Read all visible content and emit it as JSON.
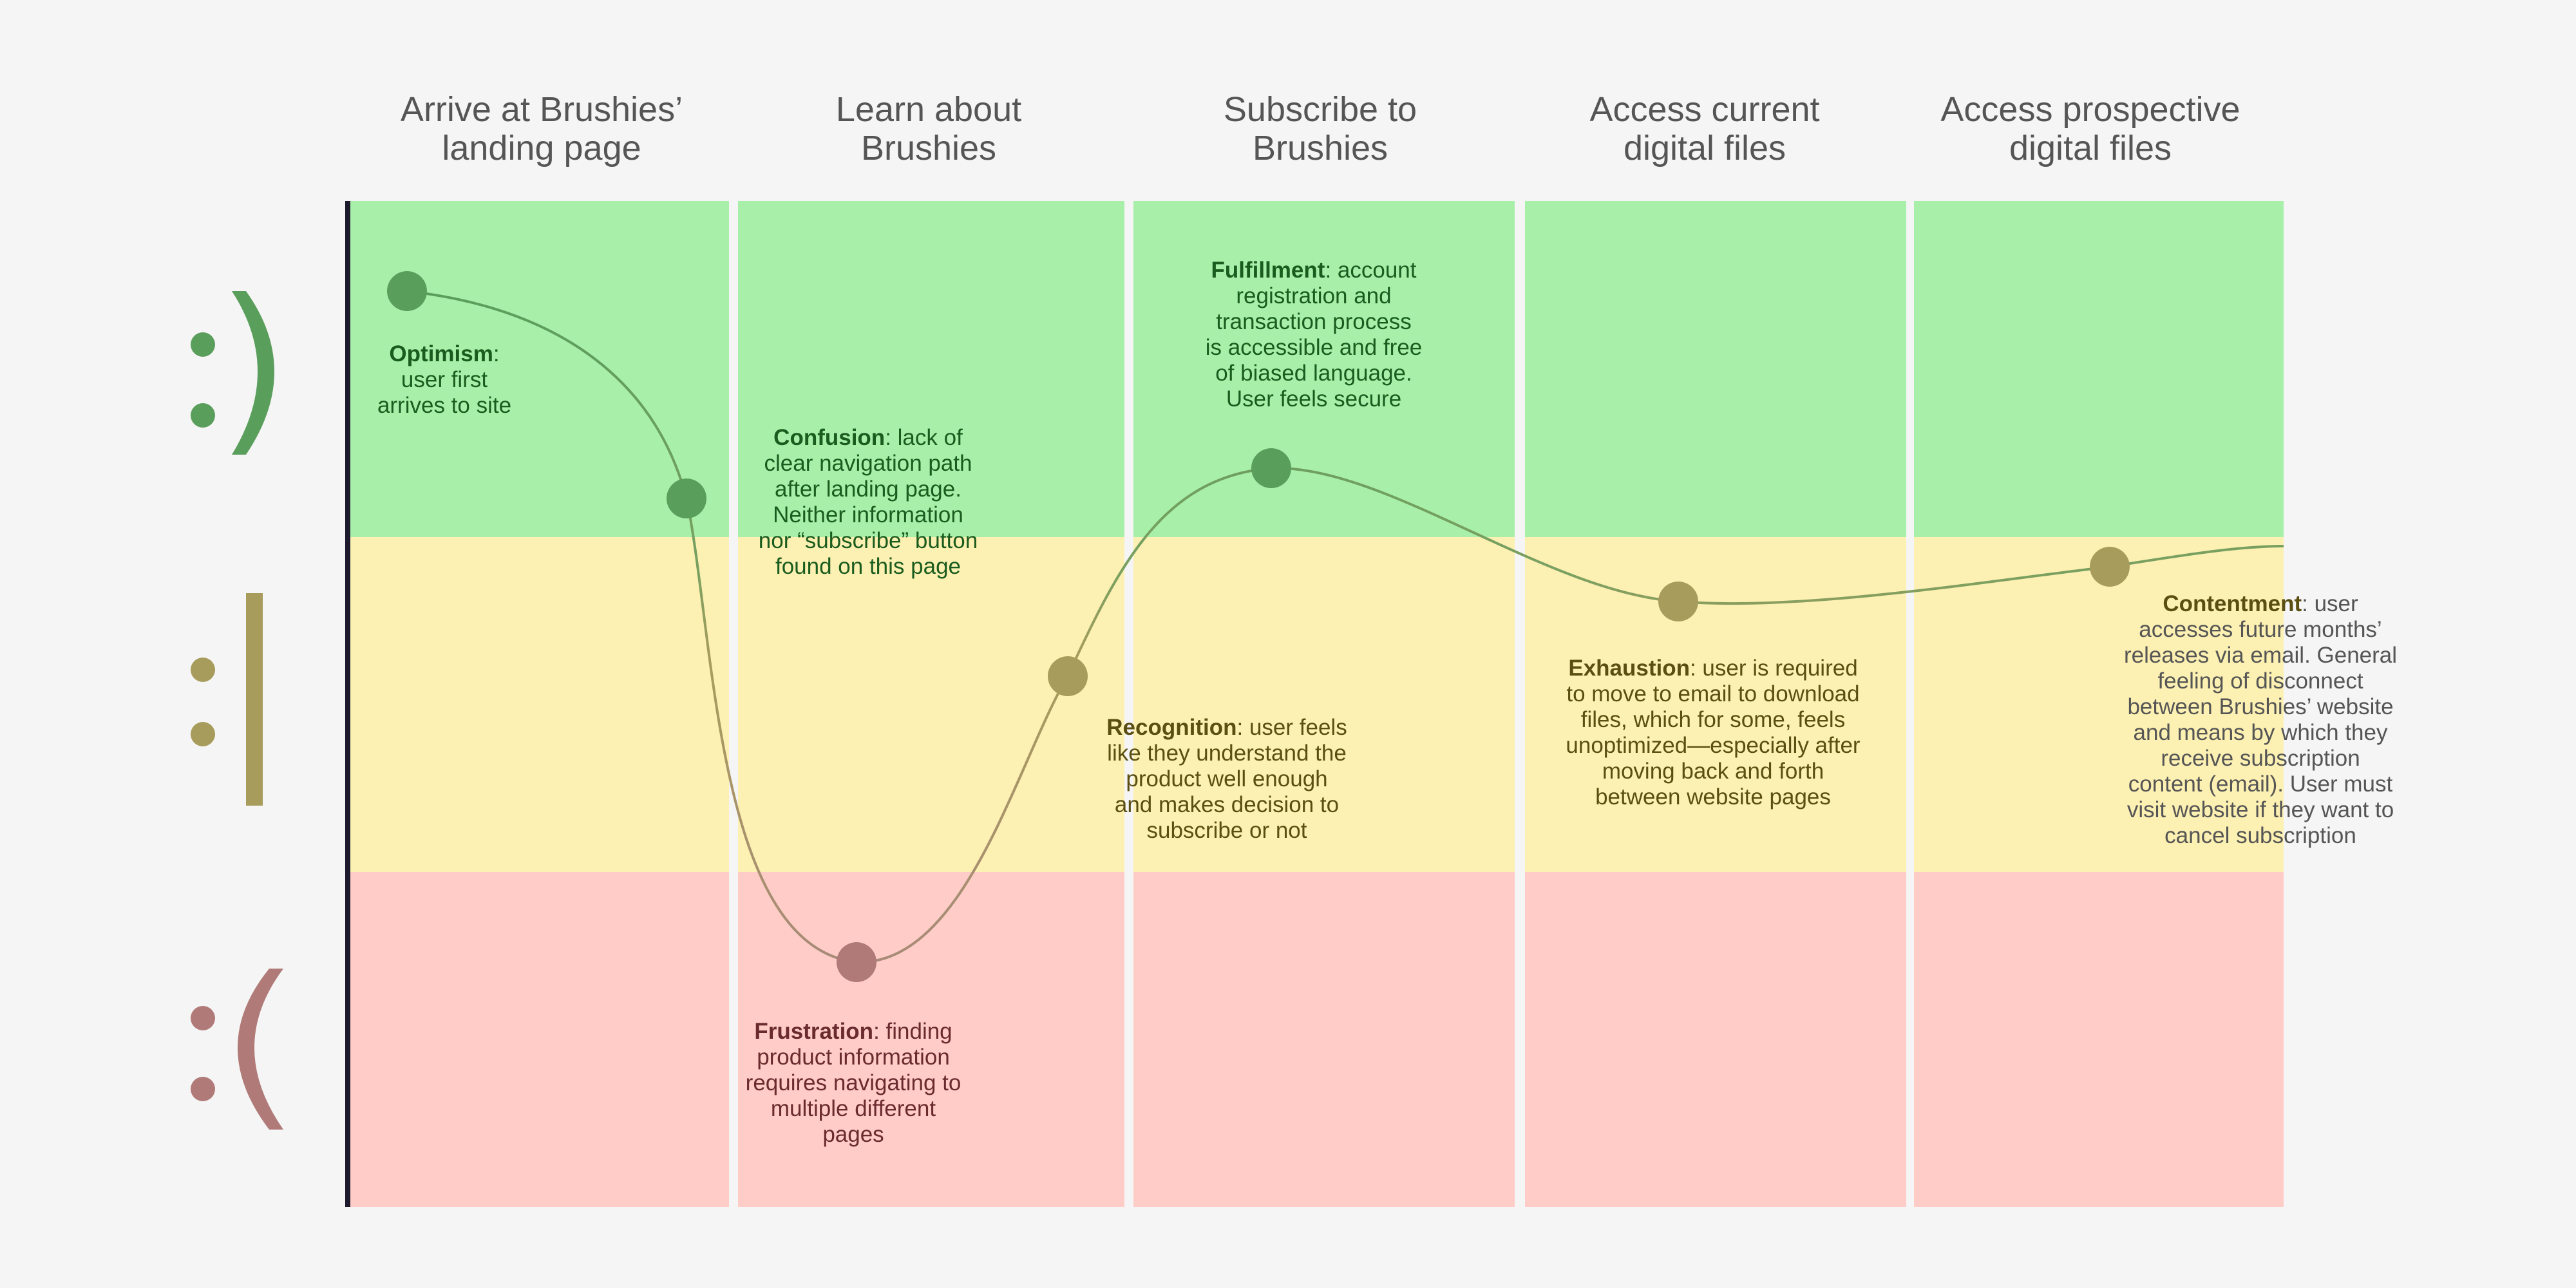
{
  "stages": [
    {
      "id": "arrive",
      "title_line1": "Arrive at Brushies’",
      "title_line2": "landing page"
    },
    {
      "id": "learn",
      "title_line1": "Learn about",
      "title_line2": "Brushies"
    },
    {
      "id": "subscribe",
      "title_line1": "Subscribe to",
      "title_line2": "Brushies"
    },
    {
      "id": "current",
      "title_line1": "Access current",
      "title_line2": "digital files"
    },
    {
      "id": "prospective",
      "title_line1": "Access prospective",
      "title_line2": "digital files"
    }
  ],
  "emotions": {
    "happy": ":)",
    "neutral": ":|",
    "sad": ":("
  },
  "colors": {
    "happy_band": "#a8f0aa",
    "neutral_band": "#fcf0b2",
    "sad_band": "#ffccc8",
    "happy_mark": "#5a9e5c",
    "neutral_mark": "#a89c5c",
    "sad_mark": "#b07a78"
  },
  "points": [
    {
      "id": "optimism",
      "stage": 1,
      "level": "happy",
      "label": "Optimism",
      "text_lines": [
        "user first",
        "arrives to site"
      ]
    },
    {
      "id": "confusion",
      "stage": 1,
      "level": "happy",
      "label": "Confusion",
      "text_lines": [
        ": lack of",
        "clear navigation path",
        "after landing page.",
        "Neither information",
        "nor “subscribe” button",
        "found on this page"
      ]
    },
    {
      "id": "frustration",
      "stage": 2,
      "level": "sad",
      "label": "Frustration",
      "text_lines": [
        ": finding",
        "product information",
        "requires navigating to",
        "multiple different",
        "pages"
      ]
    },
    {
      "id": "recognition",
      "stage": 2,
      "level": "neutral",
      "label": "Recognition",
      "text_lines": [
        ": user feels",
        "like they understand the",
        "product well enough",
        "and makes decision to",
        "subscribe or not"
      ]
    },
    {
      "id": "fulfillment",
      "stage": 3,
      "level": "happy",
      "label": "Fulfillment",
      "text_lines": [
        ": account",
        "registration and",
        "transaction process",
        "is accessible and free",
        "of biased language.",
        "User feels secure"
      ]
    },
    {
      "id": "exhaustion",
      "stage": 4,
      "level": "neutral",
      "label": "Exhaustion",
      "text_lines": [
        ": user is required",
        "to move to email to download",
        "files, which for some, feels",
        "unoptimized—especially after",
        "moving back and forth",
        "between website pages"
      ]
    },
    {
      "id": "contentment",
      "stage": 5,
      "level": "neutral",
      "label": "Contentment",
      "text_lines": [
        ": user",
        "accesses future months’",
        "releases via email. General",
        "feeling of disconnect",
        "between Brushies’ website",
        "and means by which they",
        "receive subscription",
        "content (email). User must",
        "visit website if they want to",
        "cancel subscription"
      ]
    }
  ]
}
